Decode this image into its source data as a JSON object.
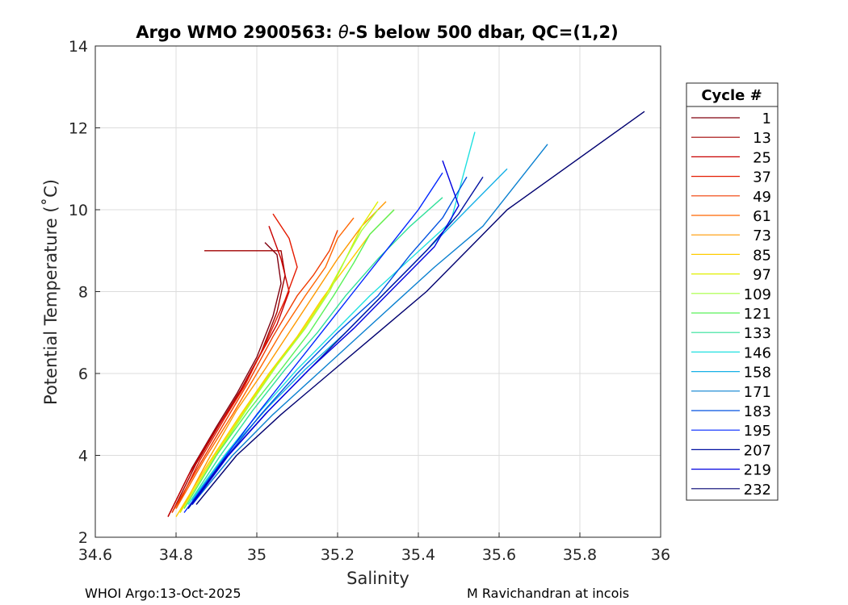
{
  "chart_data": {
    "type": "line",
    "title_prefix": "Argo WMO 2900563: ",
    "title_theta": "θ",
    "title_suffix": "-S below 500 dbar,  QC=(1,2)",
    "xlabel": "Salinity",
    "ylabel": "Potential Temperature (˚C)",
    "xlim": [
      34.6,
      36
    ],
    "ylim": [
      2,
      14
    ],
    "xticks": [
      "34.6",
      "34.8",
      "35",
      "35.2",
      "35.4",
      "35.6",
      "35.8",
      "36"
    ],
    "yticks": [
      "2",
      "4",
      "6",
      "8",
      "10",
      "12",
      "14"
    ],
    "grid": true,
    "legend": {
      "title": "Cycle #",
      "placement": "outside-right",
      "entries": [
        {
          "label": "1",
          "color": "#80000f"
        },
        {
          "label": "13",
          "color": "#a00000"
        },
        {
          "label": "25",
          "color": "#c80000"
        },
        {
          "label": "37",
          "color": "#e41a00"
        },
        {
          "label": "49",
          "color": "#f03c00"
        },
        {
          "label": "61",
          "color": "#ff6600"
        },
        {
          "label": "73",
          "color": "#ff9900"
        },
        {
          "label": "85",
          "color": "#ffcc00"
        },
        {
          "label": "97",
          "color": "#e0f000"
        },
        {
          "label": "109",
          "color": "#a6ff40"
        },
        {
          "label": "121",
          "color": "#5af25a"
        },
        {
          "label": "133",
          "color": "#30e09a"
        },
        {
          "label": "146",
          "color": "#20e0e0"
        },
        {
          "label": "158",
          "color": "#16b0e6"
        },
        {
          "label": "171",
          "color": "#0a80d0"
        },
        {
          "label": "183",
          "color": "#0050e0"
        },
        {
          "label": "195",
          "color": "#0026ff"
        },
        {
          "label": "207",
          "color": "#0010a0"
        },
        {
          "label": "219",
          "color": "#0000e0"
        },
        {
          "label": "232",
          "color": "#000070"
        }
      ]
    },
    "series": [
      {
        "name": "1",
        "x": [
          34.78,
          34.84,
          34.9,
          34.95,
          35.0,
          35.04,
          35.06,
          35.05,
          35.02
        ],
        "y": [
          2.5,
          3.7,
          4.7,
          5.5,
          6.4,
          7.4,
          8.2,
          8.9,
          9.2
        ]
      },
      {
        "name": "13",
        "x": [
          34.79,
          34.85,
          34.91,
          34.96,
          35.01,
          35.05,
          35.07,
          35.06,
          34.87
        ],
        "y": [
          2.6,
          3.8,
          4.8,
          5.6,
          6.5,
          7.5,
          8.4,
          9.0,
          9.0
        ]
      },
      {
        "name": "25",
        "x": [
          34.78,
          34.83,
          34.89,
          34.95,
          35.0,
          35.05,
          35.08,
          35.06,
          35.03
        ],
        "y": [
          2.5,
          3.5,
          4.5,
          5.4,
          6.3,
          7.2,
          8.0,
          8.8,
          9.6
        ]
      },
      {
        "name": "37",
        "x": [
          34.8,
          34.86,
          34.92,
          34.97,
          35.02,
          35.07,
          35.1,
          35.08,
          35.04
        ],
        "y": [
          2.7,
          3.9,
          4.9,
          5.7,
          6.7,
          7.8,
          8.6,
          9.3,
          9.9
        ]
      },
      {
        "name": "49",
        "x": [
          34.79,
          34.86,
          34.92,
          34.98,
          35.04,
          35.1,
          35.14,
          35.18,
          35.2
        ],
        "y": [
          2.6,
          3.8,
          4.8,
          5.8,
          6.9,
          7.9,
          8.4,
          9.0,
          9.5
        ]
      },
      {
        "name": "61",
        "x": [
          34.8,
          34.87,
          34.94,
          35.0,
          35.06,
          35.12,
          35.17,
          35.2,
          35.24
        ],
        "y": [
          2.7,
          3.9,
          5.0,
          6.0,
          7.0,
          7.9,
          8.6,
          9.3,
          9.8
        ]
      },
      {
        "name": "73",
        "x": [
          34.81,
          34.88,
          34.95,
          35.02,
          35.08,
          35.14,
          35.2,
          35.26,
          35.32
        ],
        "y": [
          2.6,
          3.9,
          5.1,
          6.1,
          7.0,
          7.9,
          8.8,
          9.6,
          10.2
        ]
      },
      {
        "name": "85",
        "x": [
          34.8,
          34.88,
          34.96,
          35.03,
          35.1,
          35.16,
          35.22,
          35.28,
          35.34
        ],
        "y": [
          2.5,
          3.8,
          5.0,
          6.0,
          6.9,
          7.8,
          8.6,
          9.4,
          10.0
        ]
      },
      {
        "name": "97",
        "x": [
          34.81,
          34.89,
          34.97,
          35.04,
          35.11,
          35.17,
          35.22,
          35.26,
          35.3
        ],
        "y": [
          2.6,
          3.9,
          5.1,
          6.1,
          7.0,
          7.9,
          8.8,
          9.6,
          10.2
        ]
      },
      {
        "name": "109",
        "x": [
          34.82,
          34.9,
          34.98,
          35.05,
          35.12,
          35.18,
          35.22,
          35.26,
          35.3
        ],
        "y": [
          2.7,
          4.0,
          5.2,
          6.2,
          7.1,
          8.0,
          8.8,
          9.5,
          10.0
        ]
      },
      {
        "name": "121",
        "x": [
          34.82,
          34.9,
          34.98,
          35.06,
          35.13,
          35.19,
          35.24,
          35.28,
          35.34
        ],
        "y": [
          2.7,
          4.0,
          5.1,
          6.1,
          7.0,
          7.9,
          8.7,
          9.4,
          10.0
        ]
      },
      {
        "name": "133",
        "x": [
          34.83,
          34.91,
          34.99,
          35.07,
          35.15,
          35.22,
          35.3,
          35.38,
          35.46
        ],
        "y": [
          2.8,
          4.0,
          5.1,
          6.1,
          7.0,
          7.9,
          8.8,
          9.6,
          10.3
        ]
      },
      {
        "name": "146",
        "x": [
          34.83,
          34.92,
          35.01,
          35.1,
          35.19,
          35.28,
          35.38,
          35.48,
          35.54
        ],
        "y": [
          2.8,
          4.0,
          5.1,
          6.1,
          7.0,
          7.9,
          8.8,
          9.7,
          11.9
        ]
      },
      {
        "name": "158",
        "x": [
          34.84,
          34.93,
          35.03,
          35.12,
          35.22,
          35.32,
          35.42,
          35.52,
          35.62
        ],
        "y": [
          2.9,
          4.1,
          5.2,
          6.1,
          7.0,
          8.0,
          9.0,
          10.0,
          11.0
        ]
      },
      {
        "name": "171",
        "x": [
          34.84,
          34.94,
          35.04,
          35.14,
          35.24,
          35.34,
          35.44,
          35.56,
          35.72
        ],
        "y": [
          2.8,
          4.0,
          5.0,
          5.9,
          6.8,
          7.7,
          8.6,
          9.6,
          11.6
        ]
      },
      {
        "name": "183",
        "x": [
          34.83,
          34.92,
          35.01,
          35.1,
          35.2,
          35.3,
          35.38,
          35.46,
          35.52
        ],
        "y": [
          2.7,
          3.9,
          5.0,
          6.0,
          7.0,
          7.9,
          8.9,
          9.8,
          10.8
        ]
      },
      {
        "name": "195",
        "x": [
          34.82,
          34.91,
          35.0,
          35.08,
          35.16,
          35.24,
          35.32,
          35.4,
          35.46
        ],
        "y": [
          2.6,
          3.8,
          5.0,
          6.0,
          7.0,
          8.0,
          9.0,
          10.0,
          10.9
        ]
      },
      {
        "name": "207",
        "x": [
          34.83,
          34.92,
          35.02,
          35.12,
          35.22,
          35.32,
          35.42,
          35.5,
          35.56
        ],
        "y": [
          2.7,
          3.9,
          5.0,
          6.0,
          7.0,
          8.0,
          9.0,
          9.9,
          10.8
        ]
      },
      {
        "name": "219",
        "x": [
          34.84,
          34.93,
          35.03,
          35.13,
          35.24,
          35.34,
          35.44,
          35.5,
          35.46
        ],
        "y": [
          2.8,
          4.0,
          5.1,
          6.1,
          7.1,
          8.1,
          9.1,
          10.1,
          11.2
        ]
      },
      {
        "name": "232",
        "x": [
          34.85,
          34.95,
          35.06,
          35.18,
          35.3,
          35.42,
          35.53,
          35.62,
          35.96
        ],
        "y": [
          2.8,
          4.0,
          5.0,
          6.0,
          7.0,
          8.0,
          9.1,
          10.0,
          12.4
        ]
      }
    ]
  },
  "footer": {
    "left": "WHOI Argo:13-Oct-2025",
    "right": "M Ravichandran at incois"
  }
}
